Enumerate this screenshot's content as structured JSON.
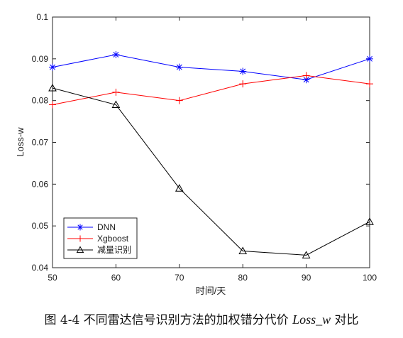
{
  "chart_data": {
    "type": "line",
    "xlabel": "时间/天",
    "ylabel": "Loss-w",
    "x": [
      50,
      60,
      70,
      80,
      90,
      100
    ],
    "xlim": [
      50,
      100
    ],
    "ylim": [
      0.04,
      0.1
    ],
    "xticks": [
      "50",
      "60",
      "70",
      "80",
      "90",
      "100"
    ],
    "yticks": [
      "0.04",
      "0.05",
      "0.06",
      "0.07",
      "0.08",
      "0.09",
      "0.1"
    ],
    "grid": false,
    "legend_position": "bottom-left",
    "series": [
      {
        "name": "DNN",
        "color": "#0000ff",
        "marker": "asterisk",
        "values": [
          0.088,
          0.091,
          0.088,
          0.087,
          0.085,
          0.09
        ]
      },
      {
        "name": "Xgboost",
        "color": "#ff0000",
        "marker": "plus",
        "values": [
          0.079,
          0.082,
          0.08,
          0.084,
          0.086,
          0.084
        ]
      },
      {
        "name": "减量识别",
        "color": "#000000",
        "marker": "triangle",
        "values": [
          0.083,
          0.079,
          0.059,
          0.044,
          0.043,
          0.051
        ]
      }
    ]
  },
  "caption": {
    "prefix": "图 4-4 不同雷达信号识别方法的加权错分代价 ",
    "italic": "Loss_w",
    "suffix": " 对比"
  }
}
